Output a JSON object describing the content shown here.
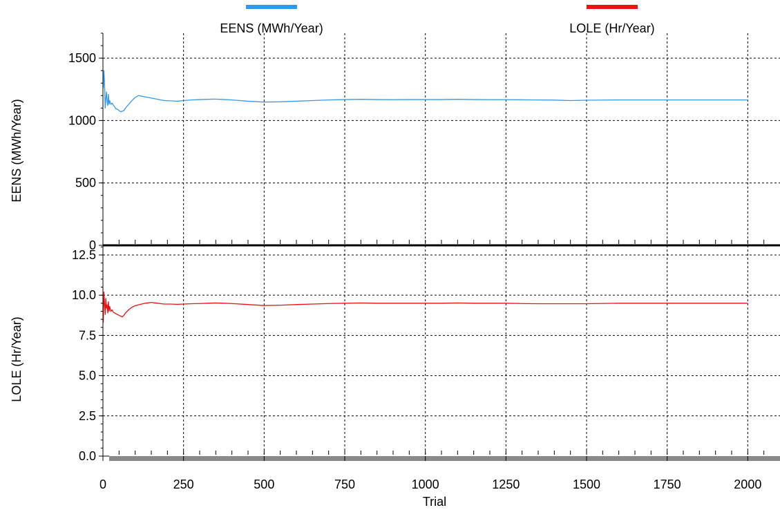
{
  "chart_data": {
    "type": "line",
    "xlabel": "Trial",
    "xlim": [
      0,
      2100
    ],
    "xticks": [
      0,
      250,
      500,
      750,
      1000,
      1250,
      1500,
      1750,
      2000
    ],
    "grid": true,
    "legend_position": "top",
    "panels": [
      {
        "id": "eens",
        "ylabel": "EENS (MWh/Year)",
        "ylim": [
          0,
          1700
        ],
        "yticks": [
          0,
          500,
          1000,
          1500
        ],
        "ytick_labels": [
          "0",
          "500",
          "1000",
          "1500"
        ],
        "series": [
          {
            "name": "EENS (MWh/Year)",
            "color": "#3399ee",
            "x": [
              1,
              3,
              5,
              7,
              9,
              11,
              13,
              15,
              17,
              19,
              21,
              23,
              25,
              28,
              32,
              36,
              40,
              45,
              50,
              55,
              60,
              65,
              70,
              80,
              90,
              100,
              110,
              120,
              130,
              150,
              170,
              190,
              210,
              230,
              250,
              275,
              300,
              325,
              350,
              375,
              400,
              450,
              500,
              550,
              600,
              650,
              700,
              750,
              800,
              850,
              900,
              950,
              1000,
              1050,
              1100,
              1150,
              1200,
              1250,
              1300,
              1350,
              1400,
              1450,
              1500,
              1600,
              1700,
              1800,
              1900,
              2000
            ],
            "values": [
              1260,
              1400,
              1300,
              1100,
              1170,
              1230,
              1150,
              1120,
              1210,
              1130,
              1160,
              1140,
              1130,
              1140,
              1125,
              1110,
              1095,
              1090,
              1080,
              1070,
              1075,
              1080,
              1100,
              1130,
              1160,
              1185,
              1200,
              1195,
              1190,
              1180,
              1170,
              1160,
              1158,
              1155,
              1160,
              1165,
              1168,
              1170,
              1172,
              1168,
              1165,
              1155,
              1148,
              1150,
              1155,
              1160,
              1165,
              1168,
              1170,
              1168,
              1167,
              1168,
              1168,
              1168,
              1170,
              1168,
              1167,
              1167,
              1166,
              1165,
              1164,
              1160,
              1163,
              1165,
              1165,
              1165,
              1165,
              1165
            ]
          }
        ]
      },
      {
        "id": "lole",
        "ylabel": "LOLE (Hr/Year)",
        "ylim": [
          0,
          13.1
        ],
        "yticks": [
          0,
          2.5,
          5,
          7.5,
          10,
          12.5
        ],
        "ytick_labels": [
          "0.0",
          "2.5",
          "5.0",
          "7.5",
          "10.0",
          "12.5"
        ],
        "series": [
          {
            "name": "LOLE (Hr/Year)",
            "color": "#ee1111",
            "x": [
              1,
              3,
              5,
              7,
              9,
              11,
              13,
              15,
              17,
              19,
              21,
              23,
              25,
              28,
              32,
              36,
              40,
              45,
              50,
              55,
              60,
              65,
              70,
              80,
              90,
              100,
              110,
              120,
              130,
              150,
              170,
              190,
              210,
              230,
              250,
              275,
              300,
              325,
              350,
              375,
              400,
              450,
              500,
              550,
              600,
              650,
              700,
              750,
              800,
              850,
              900,
              950,
              1000,
              1050,
              1100,
              1150,
              1200,
              1250,
              1300,
              1350,
              1400,
              1450,
              1500,
              1600,
              1700,
              1800,
              1900,
              2000
            ],
            "values": [
              8.3,
              10.2,
              9.5,
              8.8,
              9.8,
              9.2,
              9.4,
              8.9,
              9.6,
              9.0,
              9.3,
              9.1,
              9.0,
              9.1,
              8.95,
              8.9,
              8.85,
              8.8,
              8.75,
              8.7,
              8.65,
              8.75,
              8.9,
              9.1,
              9.25,
              9.35,
              9.4,
              9.45,
              9.5,
              9.55,
              9.5,
              9.45,
              9.45,
              9.43,
              9.45,
              9.47,
              9.48,
              9.5,
              9.52,
              9.5,
              9.48,
              9.42,
              9.36,
              9.38,
              9.42,
              9.45,
              9.48,
              9.5,
              9.52,
              9.5,
              9.5,
              9.5,
              9.5,
              9.5,
              9.52,
              9.5,
              9.5,
              9.5,
              9.48,
              9.47,
              9.47,
              9.47,
              9.47,
              9.5,
              9.5,
              9.5,
              9.5,
              9.5
            ]
          }
        ]
      }
    ]
  }
}
